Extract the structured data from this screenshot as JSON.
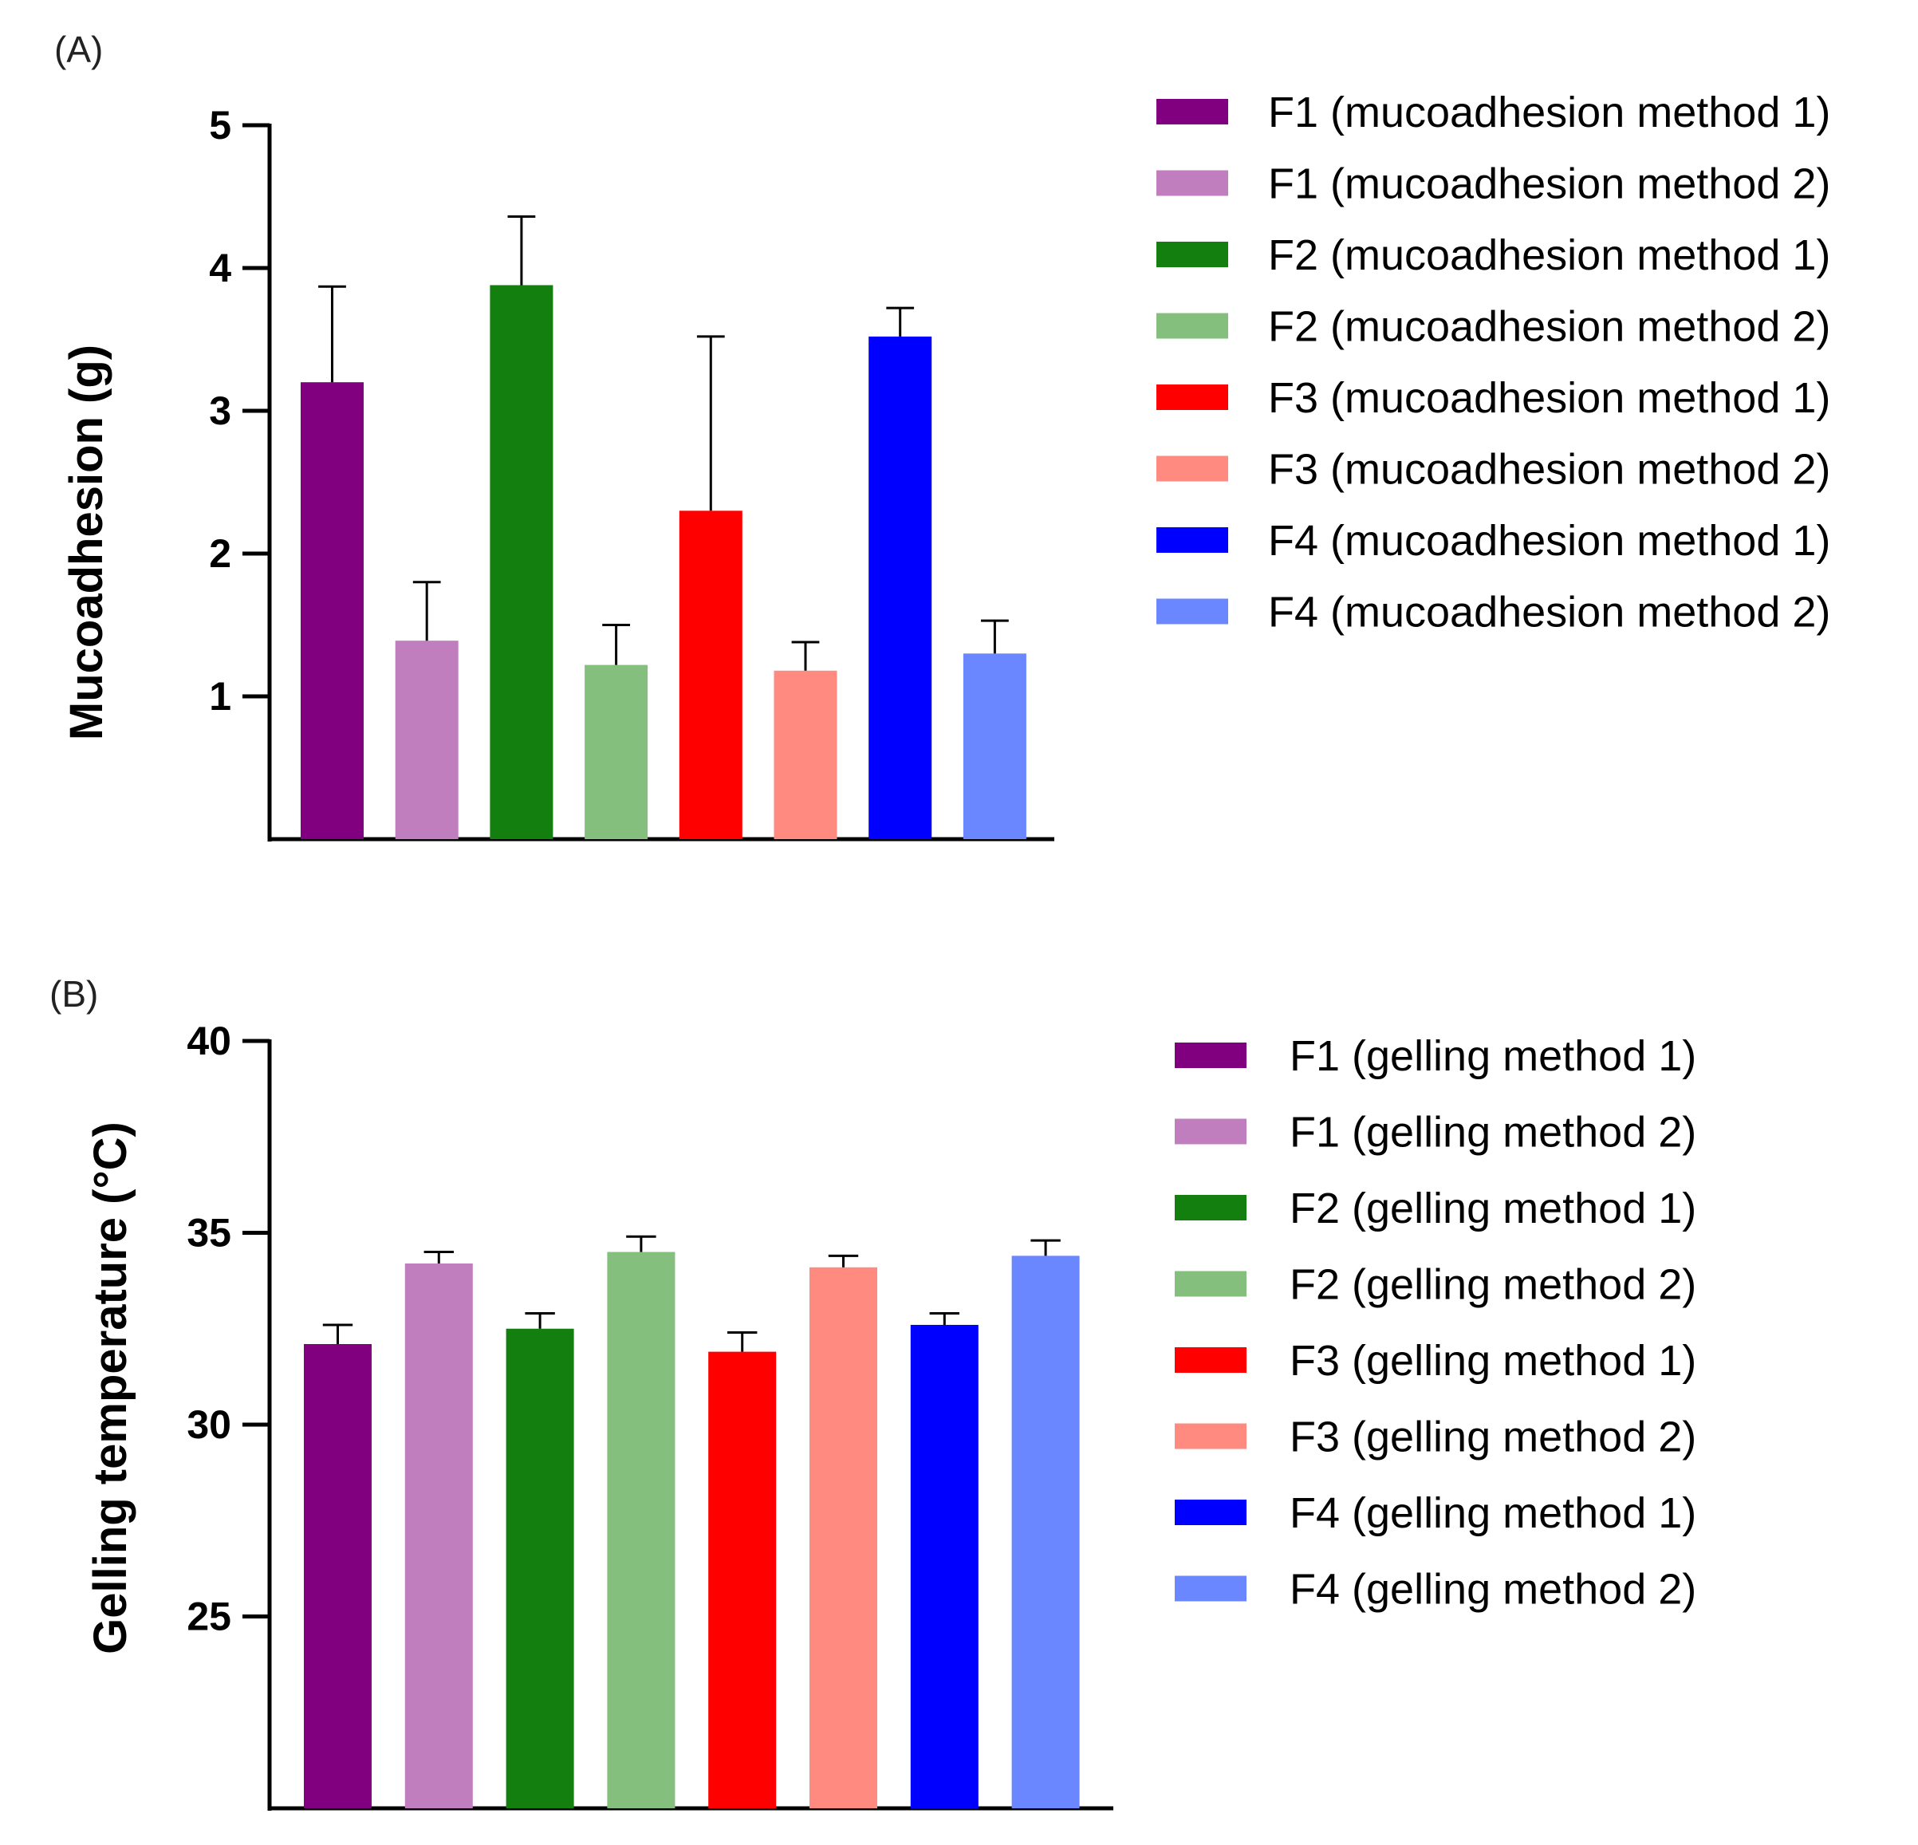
{
  "chart_data": [
    {
      "type": "bar",
      "panel_label": "(A)",
      "ylabel": "Mucoadhesion (g)",
      "xlabel": "",
      "ylim": [
        0,
        5
      ],
      "yticks": [
        "1",
        "2",
        "3",
        "4",
        "5"
      ],
      "grid": false,
      "legend_position": "right",
      "series": [
        {
          "name": "F1 (mucoadhesion method 1)",
          "value": 3.2,
          "error": 0.67,
          "color": "#800080"
        },
        {
          "name": "F1 (mucoadhesion method 2)",
          "value": 1.39,
          "error": 0.41,
          "color": "#C07EBE"
        },
        {
          "name": "F2 (mucoadhesion method 1)",
          "value": 3.88,
          "error": 0.48,
          "color": "#137F0E"
        },
        {
          "name": "F2 (mucoadhesion method 2)",
          "value": 1.22,
          "error": 0.28,
          "color": "#85BF7E"
        },
        {
          "name": "F3 (mucoadhesion method 1)",
          "value": 2.3,
          "error": 1.22,
          "color": "#FF0000"
        },
        {
          "name": "F3 (mucoadhesion method 2)",
          "value": 1.18,
          "error": 0.2,
          "color": "#FF8A80"
        },
        {
          "name": "F4 (mucoadhesion method 1)",
          "value": 3.52,
          "error": 0.2,
          "color": "#0000FF"
        },
        {
          "name": "F4 (mucoadhesion method 2)",
          "value": 1.3,
          "error": 0.23,
          "color": "#6A87FF"
        }
      ]
    },
    {
      "type": "bar",
      "panel_label": "(B)",
      "ylabel": "Gelling temperature (°C)",
      "xlabel": "",
      "ylim": [
        20,
        40
      ],
      "yticks": [
        "25",
        "30",
        "35",
        "40"
      ],
      "grid": false,
      "legend_position": "right",
      "series": [
        {
          "name": "F1 (gelling method 1)",
          "value": 32.1,
          "error": 0.5,
          "color": "#800080"
        },
        {
          "name": "F1 (gelling method 2)",
          "value": 34.2,
          "error": 0.3,
          "color": "#C07EBE"
        },
        {
          "name": "F2 (gelling method 1)",
          "value": 32.5,
          "error": 0.4,
          "color": "#137F0E"
        },
        {
          "name": "F2 (gelling method 2)",
          "value": 34.5,
          "error": 0.4,
          "color": "#85BF7E"
        },
        {
          "name": "F3 (gelling method 1)",
          "value": 31.9,
          "error": 0.5,
          "color": "#FF0000"
        },
        {
          "name": "F3 (gelling method 2)",
          "value": 34.1,
          "error": 0.3,
          "color": "#FF8A80"
        },
        {
          "name": "F4 (gelling method 1)",
          "value": 32.6,
          "error": 0.3,
          "color": "#0000FF"
        },
        {
          "name": "F4 (gelling method 2)",
          "value": 34.4,
          "error": 0.4,
          "color": "#6A87FF"
        }
      ]
    }
  ]
}
